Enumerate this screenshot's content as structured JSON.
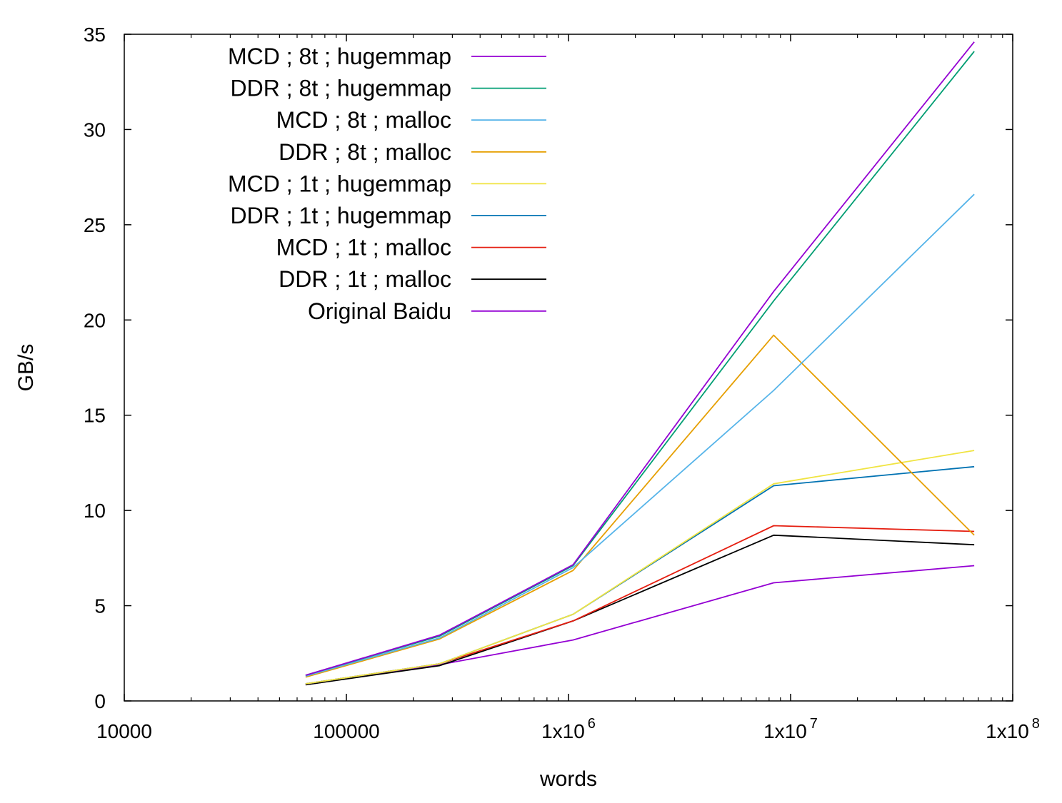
{
  "chart_data": {
    "type": "line",
    "xlabel": "words",
    "ylabel": "GB/s",
    "xscale": "log",
    "xlim": [
      10000,
      100000000
    ],
    "ylim": [
      0,
      35
    ],
    "legend_position": "top-left",
    "grid": false,
    "x_ticks": [
      {
        "value": 10000,
        "base": "10000",
        "exp": ""
      },
      {
        "value": 100000,
        "base": "100000",
        "exp": ""
      },
      {
        "value": 1000000,
        "base": "1x10",
        "exp": "6"
      },
      {
        "value": 10000000,
        "base": "1x10",
        "exp": "7"
      },
      {
        "value": 100000000,
        "base": "1x10",
        "exp": "8"
      }
    ],
    "y_ticks": [
      {
        "value": 0,
        "label": "0"
      },
      {
        "value": 5,
        "label": "5"
      },
      {
        "value": 10,
        "label": "10"
      },
      {
        "value": 15,
        "label": "15"
      },
      {
        "value": 20,
        "label": "20"
      },
      {
        "value": 25,
        "label": "25"
      },
      {
        "value": 30,
        "label": "30"
      },
      {
        "value": 35,
        "label": "35"
      }
    ],
    "x": [
      65536,
      262144,
      1048576,
      8388608,
      67108864
    ],
    "series": [
      {
        "name": "MCD ; 8t ; hugemmap",
        "color": "#9400d3",
        "values": [
          1.35,
          3.45,
          7.15,
          21.5,
          34.6
        ]
      },
      {
        "name": "DDR ; 8t ; hugemmap",
        "color": "#009e73",
        "values": [
          1.35,
          3.4,
          7.1,
          21.0,
          34.1
        ]
      },
      {
        "name": "MCD ; 8t ; malloc",
        "color": "#56b4e9",
        "values": [
          1.3,
          3.3,
          7.0,
          16.3,
          26.6
        ]
      },
      {
        "name": "DDR ; 8t ; malloc",
        "color": "#e69f00",
        "values": [
          1.25,
          3.25,
          6.85,
          19.2,
          8.7
        ]
      },
      {
        "name": "MCD ; 1t ; hugemmap",
        "color": "#f0e442",
        "values": [
          0.9,
          1.95,
          4.55,
          11.4,
          13.15
        ]
      },
      {
        "name": "DDR ; 1t ; hugemmap",
        "color": "#0072b2",
        "values": [
          0.9,
          1.95,
          4.55,
          11.3,
          12.3
        ]
      },
      {
        "name": "MCD ; 1t ; malloc",
        "color": "#e51e10",
        "values": [
          0.9,
          1.95,
          4.2,
          9.2,
          8.9
        ]
      },
      {
        "name": "DDR ; 1t ; malloc",
        "color": "#000000",
        "values": [
          0.85,
          1.85,
          4.2,
          8.7,
          8.2
        ]
      },
      {
        "name": "Original Baidu",
        "color": "#9400d3",
        "values": [
          0.85,
          1.9,
          3.2,
          6.2,
          7.1
        ]
      }
    ]
  }
}
